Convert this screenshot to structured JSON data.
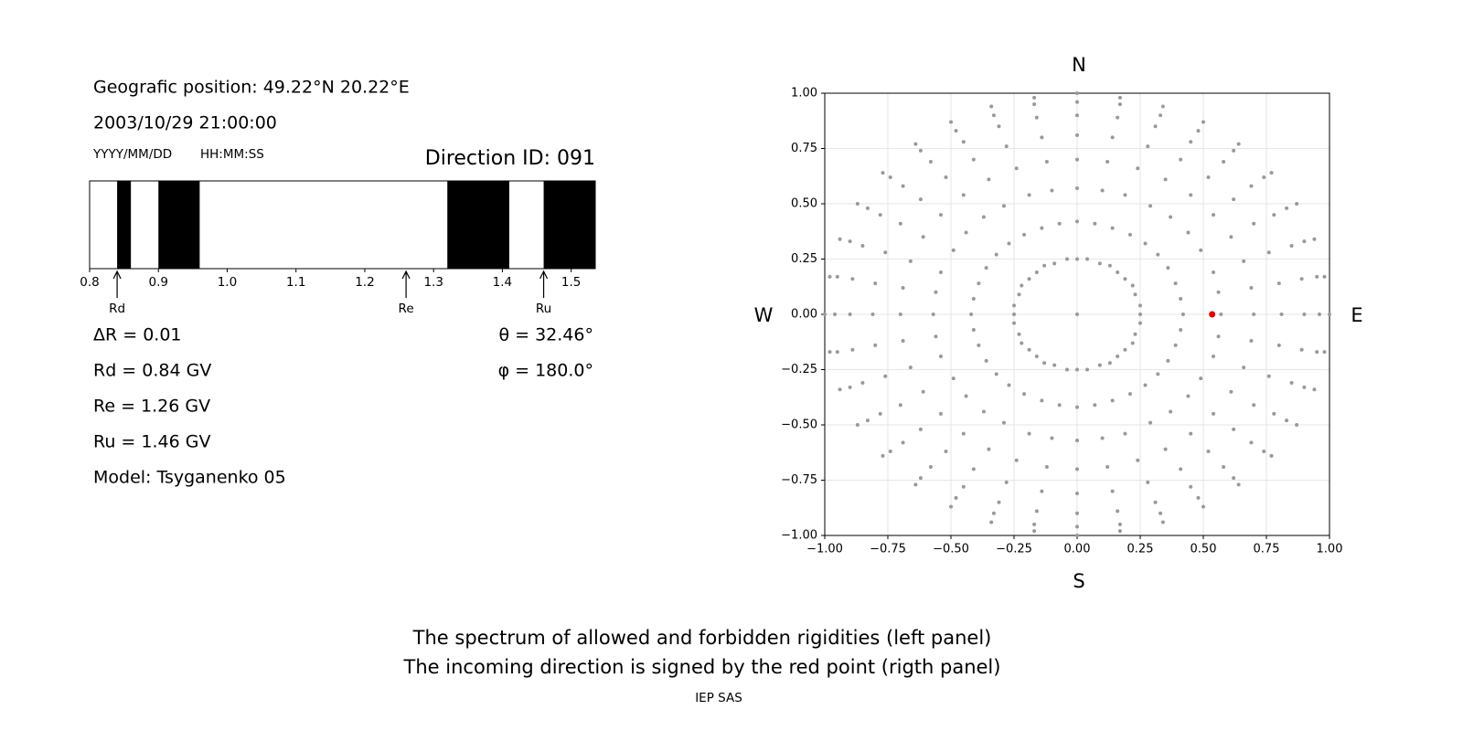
{
  "chart_data": [
    {
      "type": "spectrum",
      "position": "Geografic position: 49.22°N 20.22°E",
      "datetime": "2003/10/29 21:00:00",
      "date_format": "YYYY/MM/DD",
      "time_format": "HH:MM:SS",
      "title": "Direction ID: 091",
      "xlim": [
        0.8,
        1.535
      ],
      "xticks": [
        0.8,
        0.9,
        {
          "value": 1,
          "label": "1.0"
        },
        1.1,
        1.2,
        1.3,
        1.4,
        1.5
      ],
      "color": "#000000",
      "forbidden": [
        [
          0.84,
          0.86
        ],
        [
          0.9,
          0.96
        ],
        [
          1.32,
          1.41
        ],
        [
          1.46,
          1.535
        ]
      ],
      "markers": [
        {
          "label": "Rd",
          "value": 0.84
        },
        {
          "label": "Re",
          "value": 1.26
        },
        {
          "label": "Ru",
          "value": 1.46
        }
      ],
      "parameters_left": [
        "ΔR = 0.01",
        "Rd = 0.84 GV",
        "Re = 1.26 GV",
        "Ru = 1.46 GV",
        "Model: Tsyganenko 05"
      ],
      "parameters_right": [
        "θ = 32.46°",
        "φ = 180.0°"
      ]
    },
    {
      "type": "scatter",
      "xlim": [
        -1,
        1
      ],
      "ylim": [
        -1,
        1
      ],
      "xticks": [
        {
          "value": -1,
          "label": "−1.00"
        },
        {
          "value": -0.75,
          "label": "−0.75"
        },
        {
          "value": -0.5,
          "label": "−0.50"
        },
        {
          "value": -0.25,
          "label": "−0.25"
        },
        {
          "value": 0,
          "label": "0.00"
        },
        {
          "value": 0.25,
          "label": "0.25"
        },
        {
          "value": 0.5,
          "label": "0.50"
        },
        {
          "value": 0.75,
          "label": "0.75"
        },
        {
          "value": 1,
          "label": "1.00"
        }
      ],
      "yticks": [
        {
          "value": -1,
          "label": "−1.00"
        },
        {
          "value": -0.75,
          "label": "−0.75"
        },
        {
          "value": -0.5,
          "label": "−0.50"
        },
        {
          "value": -0.25,
          "label": "−0.25"
        },
        {
          "value": 0,
          "label": "0.00"
        },
        {
          "value": 0.25,
          "label": "0.25"
        },
        {
          "value": 0.5,
          "label": "0.50"
        },
        {
          "value": 0.75,
          "label": "0.75"
        },
        {
          "value": 1,
          "label": "1.00"
        }
      ],
      "grid": true,
      "directions": {
        "north": "N",
        "south": "S",
        "west": "W",
        "east": "E"
      },
      "series": [
        {
          "color": "#999999",
          "x": [
            0
          ],
          "y": [
            0
          ]
        },
        {
          "color": "#999999",
          "x": [
            0,
            0.04,
            0.09,
            0.13,
            0.16,
            0.19,
            0.22,
            0.23,
            0.25,
            0.25,
            0.25,
            0.23,
            0.22,
            0.19,
            0.16,
            0.13,
            0.09,
            0.04,
            0,
            -0.04,
            -0.09,
            -0.13,
            -0.16,
            -0.19,
            -0.22,
            -0.23,
            -0.25,
            -0.25,
            -0.25,
            -0.23,
            -0.22,
            -0.19,
            -0.16,
            -0.13,
            -0.09,
            -0.04
          ],
          "y": [
            0.25,
            0.25,
            0.23,
            0.22,
            0.19,
            0.16,
            0.13,
            0.09,
            0.04,
            0,
            -0.04,
            -0.09,
            -0.13,
            -0.16,
            -0.19,
            -0.22,
            -0.23,
            -0.25,
            -0.25,
            -0.25,
            -0.23,
            -0.22,
            -0.19,
            -0.16,
            -0.13,
            -0.09,
            -0.04,
            0,
            0.04,
            0.09,
            0.13,
            0.16,
            0.19,
            0.22,
            0.23,
            0.25
          ]
        },
        {
          "color": "#999999",
          "x": [
            0,
            0.07,
            0.14,
            0.21,
            0.27,
            0.32,
            0.36,
            0.39,
            0.41,
            0.42,
            0.41,
            0.39,
            0.36,
            0.32,
            0.27,
            0.21,
            0.14,
            0.07,
            0,
            -0.07,
            -0.14,
            -0.21,
            -0.27,
            -0.32,
            -0.36,
            -0.39,
            -0.41,
            -0.42,
            -0.41,
            -0.39,
            -0.36,
            -0.32,
            -0.27,
            -0.21,
            -0.14,
            -0.07
          ],
          "y": [
            0.42,
            0.41,
            0.39,
            0.36,
            0.32,
            0.27,
            0.21,
            0.14,
            0.07,
            0,
            -0.07,
            -0.14,
            -0.21,
            -0.27,
            -0.32,
            -0.36,
            -0.39,
            -0.41,
            -0.42,
            -0.41,
            -0.39,
            -0.36,
            -0.32,
            -0.27,
            -0.21,
            -0.14,
            -0.07,
            0,
            0.07,
            0.14,
            0.21,
            0.27,
            0.32,
            0.36,
            0.39,
            0.41
          ]
        },
        {
          "color": "#999999",
          "x": [
            0,
            0.1,
            0.19,
            0.29,
            0.37,
            0.44,
            0.49,
            0.54,
            0.56,
            0.57,
            0.56,
            0.54,
            0.49,
            0.44,
            0.37,
            0.29,
            0.19,
            0.1,
            0,
            -0.1,
            -0.19,
            -0.29,
            -0.37,
            -0.44,
            -0.49,
            -0.54,
            -0.56,
            -0.57,
            -0.56,
            -0.54,
            -0.49,
            -0.44,
            -0.37,
            -0.29,
            -0.19,
            -0.1
          ],
          "y": [
            0.57,
            0.56,
            0.54,
            0.49,
            0.44,
            0.37,
            0.29,
            0.19,
            0.1,
            0,
            -0.1,
            -0.19,
            -0.29,
            -0.37,
            -0.44,
            -0.49,
            -0.54,
            -0.56,
            -0.57,
            -0.56,
            -0.54,
            -0.49,
            -0.44,
            -0.37,
            -0.29,
            -0.19,
            -0.1,
            0,
            0.1,
            0.19,
            0.29,
            0.37,
            0.44,
            0.49,
            0.54,
            0.56
          ]
        },
        {
          "color": "#999999",
          "x": [
            0,
            0.12,
            0.24,
            0.35,
            0.45,
            0.54,
            0.61,
            0.66,
            0.69,
            0.7,
            0.69,
            0.66,
            0.61,
            0.54,
            0.45,
            0.35,
            0.24,
            0.12,
            0,
            -0.12,
            -0.24,
            -0.35,
            -0.45,
            -0.54,
            -0.61,
            -0.66,
            -0.69,
            -0.7,
            -0.69,
            -0.66,
            -0.61,
            -0.54,
            -0.45,
            -0.35,
            -0.24,
            -0.12
          ],
          "y": [
            0.7,
            0.69,
            0.66,
            0.61,
            0.54,
            0.45,
            0.35,
            0.24,
            0.12,
            0,
            -0.12,
            -0.24,
            -0.35,
            -0.45,
            -0.54,
            -0.61,
            -0.66,
            -0.69,
            -0.7,
            -0.69,
            -0.66,
            -0.61,
            -0.54,
            -0.45,
            -0.35,
            -0.24,
            -0.12,
            0,
            0.12,
            0.24,
            0.35,
            0.45,
            0.54,
            0.61,
            0.66,
            0.69
          ]
        },
        {
          "color": "#999999",
          "x": [
            0,
            0.14,
            0.28,
            0.41,
            0.52,
            0.62,
            0.7,
            0.76,
            0.8,
            0.81,
            0.8,
            0.76,
            0.7,
            0.62,
            0.52,
            0.41,
            0.28,
            0.14,
            0,
            -0.14,
            -0.28,
            -0.41,
            -0.52,
            -0.62,
            -0.7,
            -0.76,
            -0.8,
            -0.81,
            -0.8,
            -0.76,
            -0.7,
            -0.62,
            -0.52,
            -0.41,
            -0.28,
            -0.14
          ],
          "y": [
            0.81,
            0.8,
            0.76,
            0.7,
            0.62,
            0.52,
            0.41,
            0.28,
            0.14,
            0,
            -0.14,
            -0.28,
            -0.41,
            -0.52,
            -0.62,
            -0.7,
            -0.76,
            -0.8,
            -0.81,
            -0.8,
            -0.76,
            -0.7,
            -0.62,
            -0.52,
            -0.41,
            -0.28,
            -0.14,
            0,
            0.14,
            0.28,
            0.41,
            0.52,
            0.62,
            0.7,
            0.76,
            0.8
          ]
        },
        {
          "color": "#999999",
          "x": [
            0,
            0.16,
            0.31,
            0.45,
            0.58,
            0.69,
            0.78,
            0.85,
            0.89,
            0.9,
            0.89,
            0.85,
            0.78,
            0.69,
            0.58,
            0.45,
            0.31,
            0.16,
            0,
            -0.16,
            -0.31,
            -0.45,
            -0.58,
            -0.69,
            -0.78,
            -0.85,
            -0.89,
            -0.9,
            -0.89,
            -0.85,
            -0.78,
            -0.69,
            -0.58,
            -0.45,
            -0.31,
            -0.16
          ],
          "y": [
            0.9,
            0.89,
            0.85,
            0.78,
            0.69,
            0.58,
            0.45,
            0.31,
            0.16,
            0,
            -0.16,
            -0.31,
            -0.45,
            -0.58,
            -0.69,
            -0.78,
            -0.85,
            -0.89,
            -0.9,
            -0.89,
            -0.85,
            -0.78,
            -0.69,
            -0.58,
            -0.45,
            -0.31,
            -0.16,
            0,
            0.16,
            0.31,
            0.45,
            0.58,
            0.69,
            0.78,
            0.85,
            0.89
          ]
        },
        {
          "color": "#999999",
          "x": [
            0,
            0.17,
            0.33,
            0.48,
            0.62,
            0.74,
            0.83,
            0.9,
            0.95,
            0.96,
            0.95,
            0.9,
            0.83,
            0.74,
            0.62,
            0.48,
            0.33,
            0.17,
            0,
            -0.17,
            -0.33,
            -0.48,
            -0.62,
            -0.74,
            -0.83,
            -0.9,
            -0.95,
            -0.96,
            -0.95,
            -0.9,
            -0.83,
            -0.74,
            -0.62,
            -0.48,
            -0.33,
            -0.17
          ],
          "y": [
            0.96,
            0.95,
            0.9,
            0.83,
            0.74,
            0.62,
            0.48,
            0.33,
            0.17,
            0,
            -0.17,
            -0.33,
            -0.48,
            -0.62,
            -0.74,
            -0.83,
            -0.9,
            -0.95,
            -0.96,
            -0.95,
            -0.9,
            -0.83,
            -0.74,
            -0.62,
            -0.48,
            -0.33,
            -0.17,
            0,
            0.17,
            0.33,
            0.48,
            0.62,
            0.74,
            0.83,
            0.9,
            0.95
          ]
        },
        {
          "color": "#999999",
          "x": [
            0,
            0.17,
            0.34,
            0.5,
            0.64,
            0.77,
            0.87,
            0.94,
            0.98,
            1,
            0.98,
            0.94,
            0.87,
            0.77,
            0.64,
            0.5,
            0.34,
            0.17,
            0,
            -0.17,
            -0.34,
            -0.5,
            -0.64,
            -0.77,
            -0.87,
            -0.94,
            -0.98,
            -1,
            -0.98,
            -0.94,
            -0.87,
            -0.77,
            -0.64,
            -0.5,
            -0.34,
            -0.17
          ],
          "y": [
            1,
            0.98,
            0.94,
            0.87,
            0.77,
            0.64,
            0.5,
            0.34,
            0.17,
            0,
            -0.17,
            -0.34,
            -0.5,
            -0.64,
            -0.77,
            -0.87,
            -0.94,
            -0.98,
            -1,
            -0.98,
            -0.94,
            -0.87,
            -0.77,
            -0.64,
            -0.5,
            -0.34,
            -0.17,
            0,
            0.17,
            0.34,
            0.5,
            0.64,
            0.77,
            0.87,
            0.94,
            0.98
          ]
        },
        {
          "color": "#e00000",
          "x": [
            0.535
          ],
          "y": [
            0
          ]
        }
      ]
    }
  ],
  "caption": [
    "The spectrum of allowed and forbidden rigidities (left panel)",
    "The incoming direction is signed by the red point (rigth panel)"
  ],
  "footer": "IEP SAS"
}
